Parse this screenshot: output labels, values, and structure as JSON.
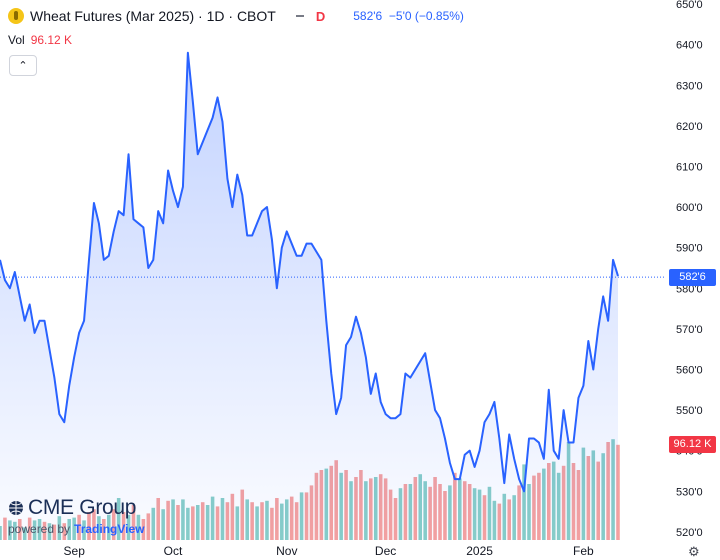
{
  "header": {
    "title": "Wheat Futures (Mar 2025) · 1D · CBOT",
    "badge": "D",
    "price": "582'6",
    "change": "−5'0 (−0.85%)"
  },
  "volume": {
    "label": "Vol",
    "value": "96.12 K"
  },
  "brand": {
    "name": "CME Group",
    "powered": "powered by",
    "platform": "TradingView"
  },
  "last_price_label": "582'6",
  "last_volume_label": "96.12 K",
  "colors": {
    "line": "#2962ff",
    "up": "#26a69a",
    "down": "#ef5350",
    "label_blue": "#2962ff",
    "label_red": "#f23645"
  },
  "chart_data": {
    "type": "area",
    "y_ticks": [
      "520'0",
      "530'0",
      "540'0",
      "550'0",
      "560'0",
      "570'0",
      "580'0",
      "590'0",
      "600'0",
      "610'0",
      "620'0",
      "630'0",
      "640'0",
      "650'0"
    ],
    "y_tick_values": [
      520,
      530,
      540,
      550,
      560,
      570,
      580,
      590,
      600,
      610,
      620,
      630,
      640,
      650
    ],
    "ylim": [
      518,
      651
    ],
    "x_labels": [
      {
        "label": "Sep",
        "index": 15
      },
      {
        "label": "Oct",
        "index": 35
      },
      {
        "label": "Nov",
        "index": 58
      },
      {
        "label": "Dec",
        "index": 78
      },
      {
        "label": "2025",
        "index": 97
      },
      {
        "label": "Feb",
        "index": 118
      }
    ],
    "last_price": 582.75,
    "series": [
      {
        "name": "price",
        "values": [
          587,
          582,
          580,
          584,
          578,
          572,
          576,
          569,
          572,
          572,
          565,
          558,
          549,
          547,
          556,
          563,
          569,
          572,
          587,
          601,
          596,
          587,
          588,
          594,
          599,
          598,
          613,
          597,
          596,
          595,
          585,
          587,
          599,
          596,
          609,
          604,
          600,
          605,
          638,
          626,
          613,
          616,
          619,
          622,
          627,
          621,
          607,
          600,
          608,
          603,
          593,
          593,
          596,
          599,
          600,
          592,
          580,
          590,
          594,
          591,
          588,
          588,
          591,
          591,
          589,
          587,
          572,
          559,
          549,
          553,
          566,
          568,
          573,
          569,
          563,
          554,
          559,
          552,
          549,
          548,
          548,
          549,
          559,
          558,
          560,
          562,
          564,
          557,
          550,
          548,
          543,
          537,
          533,
          533,
          539,
          540,
          536,
          540,
          547,
          549,
          552,
          543,
          532,
          544,
          538,
          533,
          530,
          543,
          543,
          542,
          538,
          555,
          540,
          538,
          550,
          542,
          542,
          553,
          556,
          567,
          560,
          570,
          578,
          572,
          587,
          583
        ]
      },
      {
        "name": "volume",
        "values": [
          10,
          16,
          14,
          13,
          15,
          9,
          16,
          14,
          15,
          13,
          12,
          11,
          17,
          12,
          15,
          16,
          18,
          14,
          20,
          22,
          17,
          15,
          18,
          22,
          30,
          20,
          18,
          25,
          18,
          15,
          19,
          23,
          30,
          22,
          28,
          29,
          25,
          29,
          23,
          24,
          25,
          27,
          25,
          31,
          24,
          30,
          27,
          33,
          24,
          36,
          29,
          27,
          24,
          27,
          28,
          23,
          30,
          26,
          29,
          31,
          27,
          34,
          34,
          39,
          48,
          50,
          51,
          53,
          57,
          48,
          50,
          42,
          45,
          50,
          42,
          44,
          45,
          47,
          44,
          36,
          30,
          37,
          40,
          40,
          45,
          47,
          42,
          38,
          45,
          40,
          35,
          39,
          48,
          44,
          42,
          40,
          37,
          36,
          32,
          38,
          28,
          26,
          33,
          29,
          32,
          39,
          54,
          40,
          46,
          48,
          51,
          55,
          56,
          48,
          53,
          70,
          55,
          50,
          66,
          60,
          64,
          56,
          62,
          70,
          72,
          68
        ],
        "direction": [
          "u",
          "d",
          "u",
          "u",
          "d",
          "u",
          "d",
          "u",
          "u",
          "d",
          "u",
          "d",
          "u",
          "d",
          "u",
          "u",
          "d",
          "u",
          "d",
          "d",
          "u",
          "d",
          "u",
          "d",
          "u",
          "d",
          "u",
          "d",
          "u",
          "d",
          "d",
          "u",
          "d",
          "u",
          "d",
          "u",
          "d",
          "u",
          "u",
          "d",
          "u",
          "d",
          "u",
          "u",
          "d",
          "u",
          "d",
          "d",
          "u",
          "d",
          "u",
          "d",
          "u",
          "d",
          "u",
          "d",
          "d",
          "u",
          "u",
          "d",
          "d",
          "u",
          "d",
          "d",
          "d",
          "d",
          "u",
          "d",
          "d",
          "u",
          "d",
          "u",
          "d",
          "d",
          "u",
          "d",
          "u",
          "d",
          "d",
          "d",
          "d",
          "u",
          "d",
          "u",
          "d",
          "u",
          "u",
          "d",
          "d",
          "d",
          "d",
          "u",
          "d",
          "u",
          "d",
          "d",
          "u",
          "u",
          "d",
          "u",
          "u",
          "d",
          "u",
          "d",
          "u",
          "d",
          "u",
          "u",
          "d",
          "d",
          "u",
          "d",
          "u",
          "u",
          "d",
          "u",
          "d",
          "d",
          "u",
          "d",
          "u",
          "d",
          "u",
          "d",
          "u",
          "d"
        ]
      }
    ]
  }
}
